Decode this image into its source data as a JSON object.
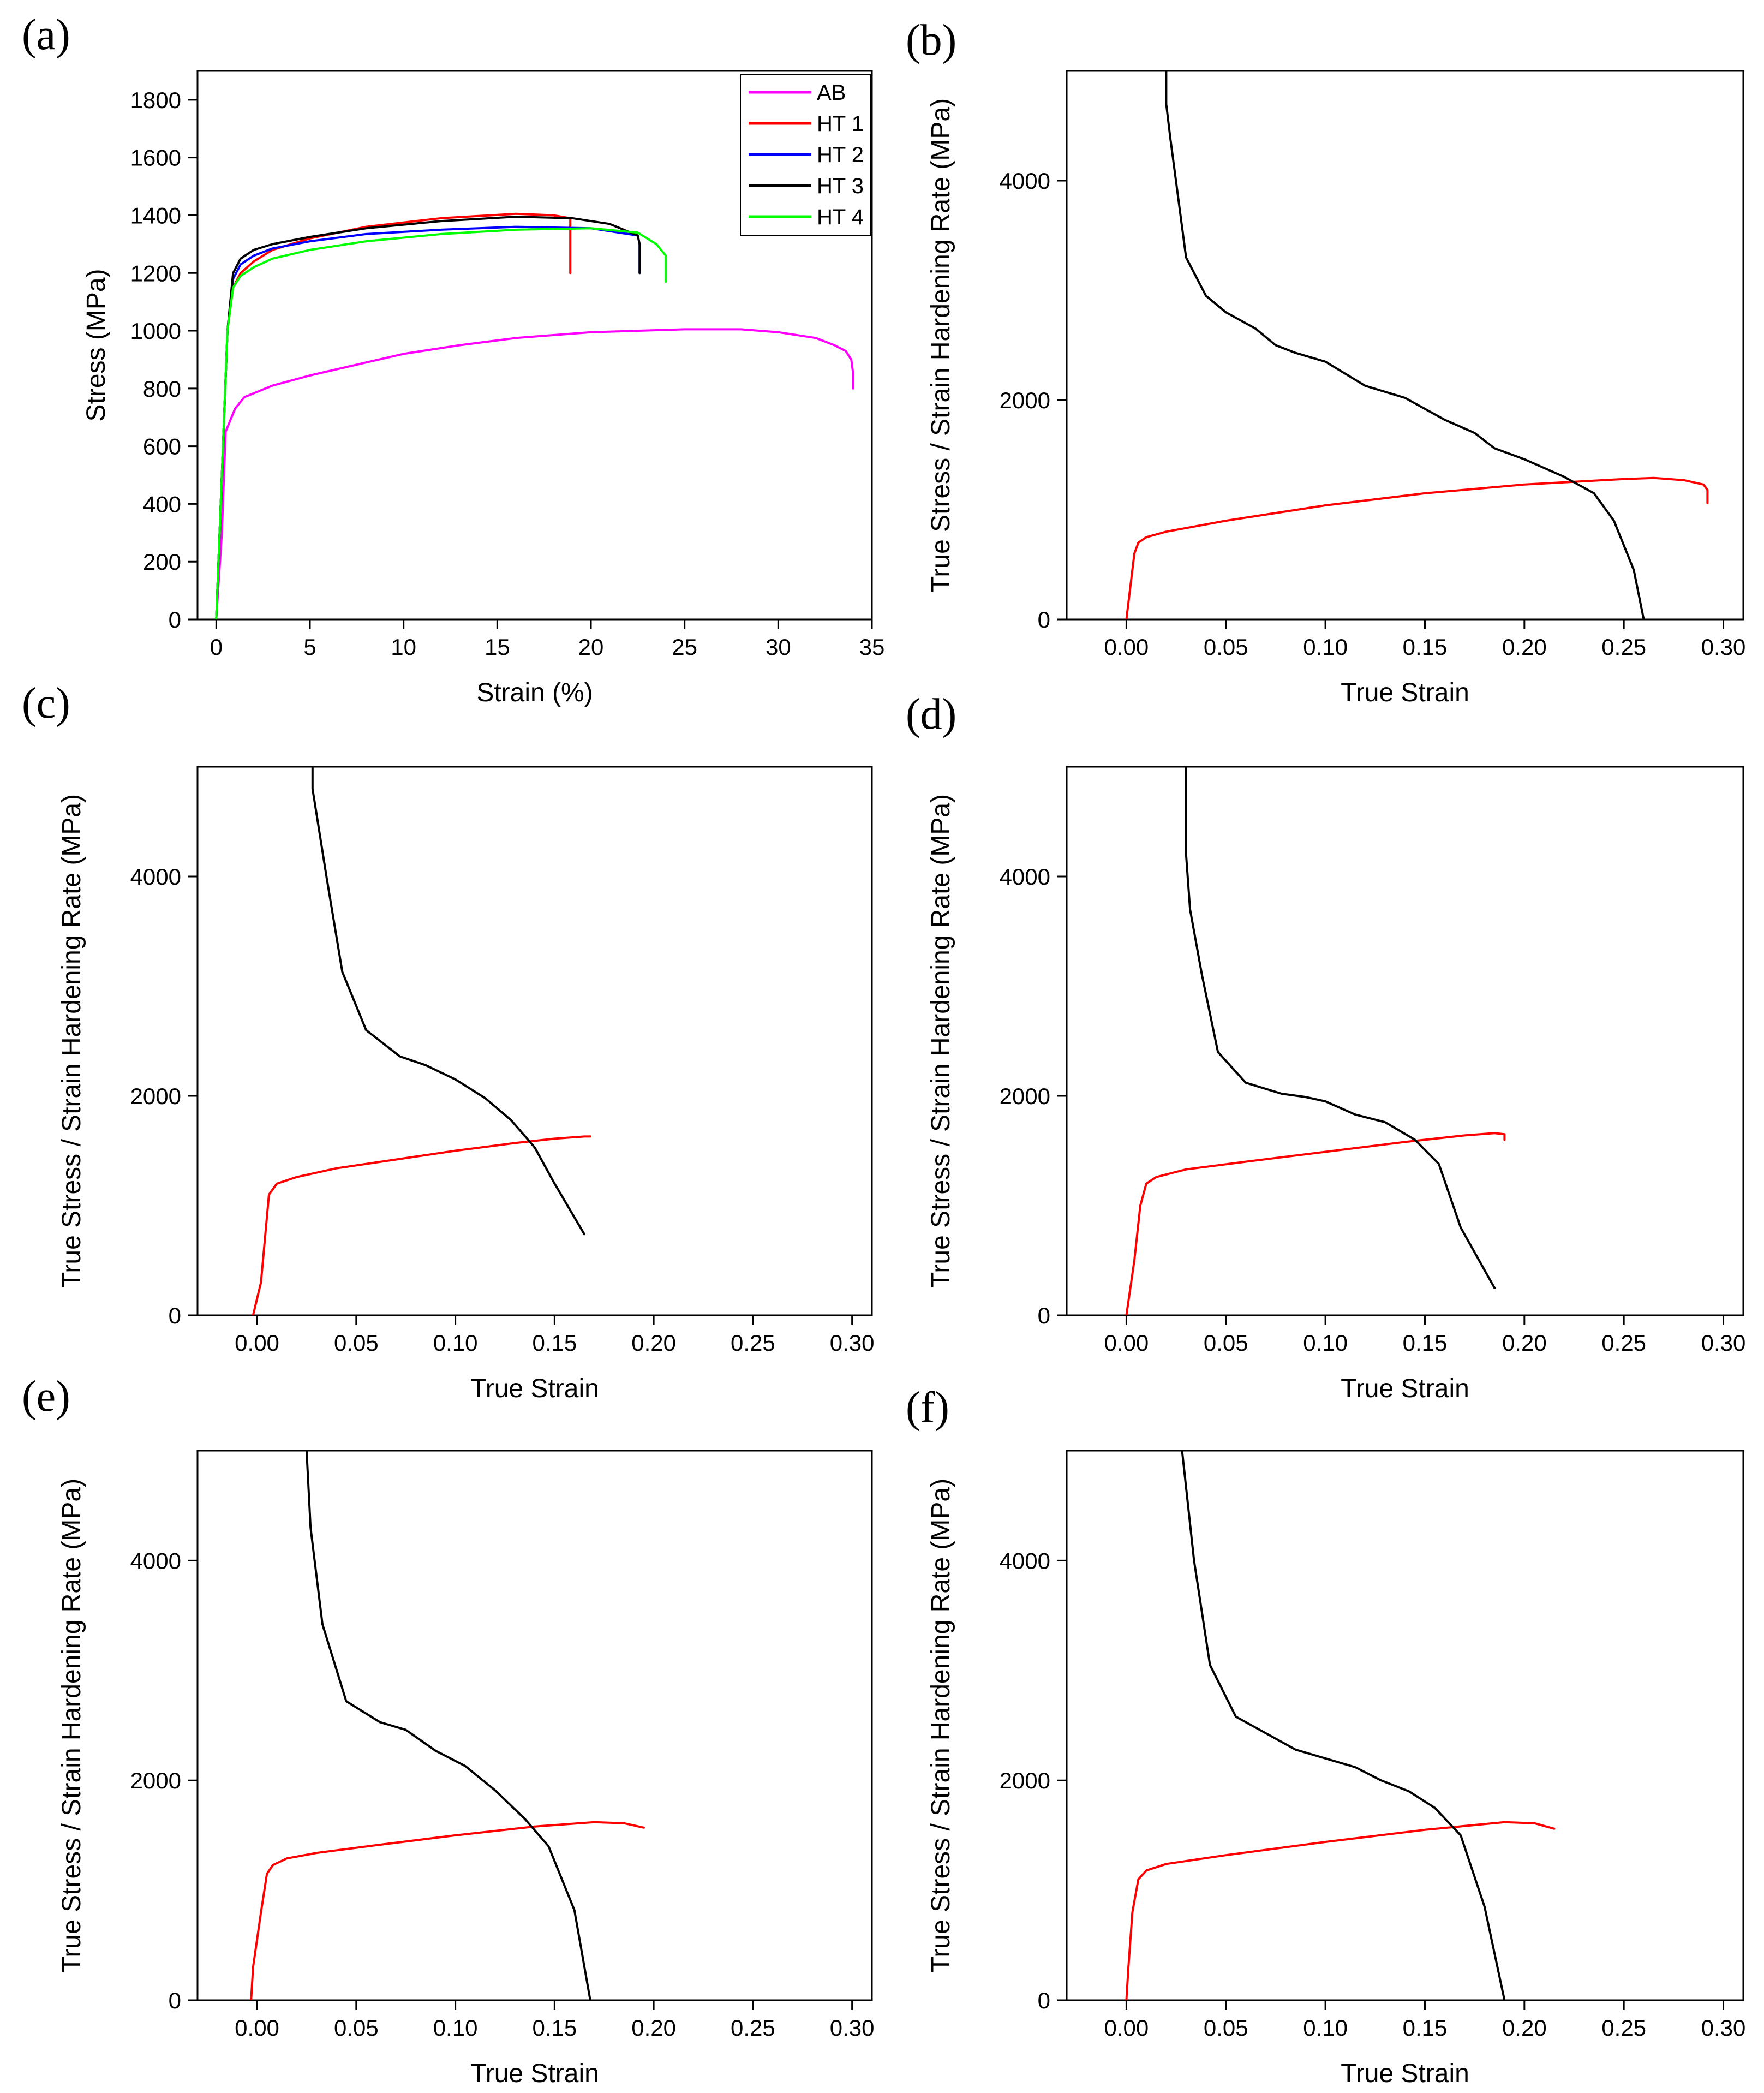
{
  "chart_data": [
    {
      "panel": "(a)",
      "type": "line",
      "xlabel": "Strain (%)",
      "ylabel": "Stress (MPa)",
      "xlim": [
        -1,
        35
      ],
      "ylim": [
        0,
        1900
      ],
      "xticks": [
        0,
        5,
        10,
        15,
        20,
        25,
        30,
        35
      ],
      "yticks": [
        0,
        200,
        400,
        600,
        800,
        1000,
        1200,
        1400,
        1600,
        1800
      ],
      "xtick_labels": [
        "0",
        "5",
        "10",
        "15",
        "20",
        "25",
        "30",
        "35"
      ],
      "ytick_labels": [
        "0",
        "200",
        "400",
        "600",
        "800",
        "1000",
        "1200",
        "1400",
        "1600",
        "1800"
      ],
      "legend_position": "top-right",
      "series": [
        {
          "name": "AB",
          "color": "#ff00ff",
          "x": [
            0,
            0.3,
            0.5,
            1,
            1.5,
            3,
            5,
            8,
            10,
            13,
            16,
            20,
            25,
            28,
            30,
            32,
            33,
            33.6,
            33.9,
            34,
            34
          ],
          "y": [
            0,
            300,
            650,
            730,
            770,
            810,
            845,
            890,
            920,
            950,
            975,
            995,
            1005,
            1005,
            995,
            975,
            950,
            930,
            900,
            850,
            800
          ]
        },
        {
          "name": "HT 1",
          "color": "#ff0000",
          "x": [
            0,
            0.3,
            0.6,
            0.9,
            1.3,
            2,
            3,
            5,
            8,
            12,
            16,
            18,
            18.9,
            18.9
          ],
          "y": [
            0,
            500,
            1000,
            1150,
            1200,
            1240,
            1280,
            1320,
            1360,
            1390,
            1405,
            1400,
            1390,
            1200
          ]
        },
        {
          "name": "HT 2",
          "color": "#0000ff",
          "x": [
            0,
            0.3,
            0.6,
            0.9,
            1.3,
            2,
            3,
            5,
            8,
            12,
            16,
            20,
            22.5,
            22.6,
            22.6
          ],
          "y": [
            0,
            500,
            1000,
            1180,
            1230,
            1260,
            1285,
            1310,
            1335,
            1350,
            1360,
            1355,
            1330,
            1300,
            1200
          ]
        },
        {
          "name": "HT 3",
          "color": "#000000",
          "x": [
            0,
            0.3,
            0.6,
            0.9,
            1.3,
            2,
            3,
            5,
            8,
            12,
            16,
            19,
            21,
            22.5,
            22.6,
            22.6
          ],
          "y": [
            0,
            500,
            1000,
            1200,
            1250,
            1280,
            1300,
            1325,
            1355,
            1380,
            1395,
            1390,
            1370,
            1330,
            1300,
            1200
          ]
        },
        {
          "name": "HT 4",
          "color": "#00ff00",
          "x": [
            0,
            0.3,
            0.6,
            0.9,
            1.3,
            2,
            3,
            5,
            8,
            12,
            16,
            20,
            22.5,
            23.5,
            24,
            24
          ],
          "y": [
            0,
            500,
            1000,
            1150,
            1190,
            1220,
            1250,
            1280,
            1310,
            1335,
            1350,
            1355,
            1340,
            1300,
            1260,
            1170
          ]
        }
      ]
    },
    {
      "panel": "(b)",
      "type": "line",
      "xlabel": "True Strain",
      "ylabel": "True Stress / Strain Hardening Rate (MPa)",
      "xlim": [
        -0.03,
        0.31
      ],
      "ylim": [
        0,
        5000
      ],
      "xticks": [
        0,
        0.05,
        0.1,
        0.15,
        0.2,
        0.25,
        0.3
      ],
      "yticks": [
        0,
        2000,
        4000
      ],
      "xtick_labels": [
        "0.00",
        "0.05",
        "0.10",
        "0.15",
        "0.20",
        "0.25",
        "0.30"
      ],
      "ytick_labels": [
        "0",
        "2000",
        "4000"
      ],
      "series": [
        {
          "name": "True Stress",
          "color": "#ff0000",
          "x": [
            0,
            0.002,
            0.004,
            0.006,
            0.01,
            0.02,
            0.05,
            0.1,
            0.15,
            0.2,
            0.25,
            0.265,
            0.28,
            0.29,
            0.292,
            0.292
          ],
          "y": [
            0,
            300,
            600,
            700,
            750,
            800,
            900,
            1040,
            1150,
            1230,
            1280,
            1290,
            1270,
            1230,
            1180,
            1060
          ]
        },
        {
          "name": "Strain Hardening Rate",
          "color": "#000000",
          "x": [
            0.02,
            0.02,
            0.022,
            0.03,
            0.04,
            0.05,
            0.065,
            0.075,
            0.085,
            0.1,
            0.12,
            0.14,
            0.16,
            0.175,
            0.185,
            0.2,
            0.22,
            0.235,
            0.245,
            0.255,
            0.26
          ],
          "y": [
            5000,
            4700,
            4400,
            3300,
            2950,
            2800,
            2650,
            2500,
            2430,
            2350,
            2130,
            2020,
            1820,
            1700,
            1560,
            1460,
            1300,
            1150,
            900,
            450,
            0
          ]
        }
      ]
    },
    {
      "panel": "(c)",
      "type": "line",
      "xlabel": "True Strain",
      "ylabel": "True Stress / Strain Hardening Rate (MPa)",
      "xlim": [
        -0.03,
        0.31
      ],
      "ylim": [
        0,
        5000
      ],
      "xticks": [
        0,
        0.05,
        0.1,
        0.15,
        0.2,
        0.25,
        0.3
      ],
      "yticks": [
        0,
        2000,
        4000
      ],
      "xtick_labels": [
        "0.00",
        "0.05",
        "0.10",
        "0.15",
        "0.20",
        "0.25",
        "0.30"
      ],
      "ytick_labels": [
        "0",
        "2000",
        "4000"
      ],
      "series": [
        {
          "name": "True Stress",
          "color": "#ff0000",
          "x": [
            -0.002,
            0.002,
            0.004,
            0.006,
            0.01,
            0.02,
            0.04,
            0.07,
            0.1,
            0.13,
            0.15,
            0.165,
            0.168
          ],
          "y": [
            0,
            300,
            700,
            1100,
            1200,
            1260,
            1340,
            1420,
            1500,
            1570,
            1610,
            1630,
            1630
          ]
        },
        {
          "name": "Strain Hardening Rate",
          "color": "#000000",
          "x": [
            0.028,
            0.028,
            0.035,
            0.043,
            0.055,
            0.072,
            0.085,
            0.1,
            0.115,
            0.128,
            0.14,
            0.15,
            0.165
          ],
          "y": [
            5000,
            4800,
            4000,
            3130,
            2600,
            2360,
            2280,
            2150,
            1980,
            1780,
            1530,
            1200,
            740
          ]
        }
      ]
    },
    {
      "panel": "(d)",
      "type": "line",
      "xlabel": "True Strain",
      "ylabel": "True Stress / Strain Hardening Rate (MPa)",
      "xlim": [
        -0.03,
        0.31
      ],
      "ylim": [
        0,
        5000
      ],
      "xticks": [
        0,
        0.05,
        0.1,
        0.15,
        0.2,
        0.25,
        0.3
      ],
      "yticks": [
        0,
        2000,
        4000
      ],
      "xtick_labels": [
        "0.00",
        "0.05",
        "0.10",
        "0.15",
        "0.20",
        "0.25",
        "0.30"
      ],
      "ytick_labels": [
        "0",
        "2000",
        "4000"
      ],
      "series": [
        {
          "name": "True Stress",
          "color": "#ff0000",
          "x": [
            0,
            0.004,
            0.007,
            0.01,
            0.015,
            0.03,
            0.06,
            0.1,
            0.14,
            0.17,
            0.185,
            0.19,
            0.19
          ],
          "y": [
            0,
            500,
            1000,
            1200,
            1260,
            1330,
            1400,
            1490,
            1580,
            1640,
            1660,
            1650,
            1600
          ]
        },
        {
          "name": "Strain Hardening Rate",
          "color": "#000000",
          "x": [
            0.03,
            0.03,
            0.032,
            0.038,
            0.046,
            0.06,
            0.078,
            0.09,
            0.1,
            0.115,
            0.13,
            0.145,
            0.157,
            0.168,
            0.185
          ],
          "y": [
            5000,
            4200,
            3700,
            3100,
            2400,
            2120,
            2020,
            1990,
            1950,
            1830,
            1760,
            1600,
            1380,
            800,
            250
          ]
        }
      ]
    },
    {
      "panel": "(e)",
      "type": "line",
      "xlabel": "True Strain",
      "ylabel": "True Stress / Strain Hardening Rate (MPa)",
      "xlim": [
        -0.03,
        0.31
      ],
      "ylim": [
        0,
        5000
      ],
      "xticks": [
        0,
        0.05,
        0.1,
        0.15,
        0.2,
        0.25,
        0.3
      ],
      "yticks": [
        0,
        2000,
        4000
      ],
      "xtick_labels": [
        "0.00",
        "0.05",
        "0.10",
        "0.15",
        "0.20",
        "0.25",
        "0.30"
      ],
      "ytick_labels": [
        "0",
        "2000",
        "4000"
      ],
      "series": [
        {
          "name": "True Stress",
          "color": "#ff0000",
          "x": [
            -0.003,
            -0.002,
            0.002,
            0.005,
            0.008,
            0.015,
            0.03,
            0.06,
            0.1,
            0.14,
            0.17,
            0.185,
            0.195
          ],
          "y": [
            0,
            300,
            800,
            1150,
            1230,
            1290,
            1340,
            1410,
            1500,
            1580,
            1620,
            1610,
            1570
          ]
        },
        {
          "name": "Strain Hardening Rate",
          "color": "#000000",
          "x": [
            0.025,
            0.027,
            0.033,
            0.045,
            0.062,
            0.075,
            0.09,
            0.105,
            0.12,
            0.135,
            0.147,
            0.16,
            0.168
          ],
          "y": [
            5000,
            4300,
            3420,
            2720,
            2530,
            2460,
            2270,
            2130,
            1910,
            1650,
            1400,
            820,
            0
          ]
        }
      ]
    },
    {
      "panel": "(f)",
      "type": "line",
      "xlabel": "True Strain",
      "ylabel": "True Stress / Strain Hardening Rate (MPa)",
      "xlim": [
        -0.03,
        0.31
      ],
      "ylim": [
        0,
        5000
      ],
      "xticks": [
        0,
        0.05,
        0.1,
        0.15,
        0.2,
        0.25,
        0.3
      ],
      "yticks": [
        0,
        2000,
        4000
      ],
      "xtick_labels": [
        "0.00",
        "0.05",
        "0.10",
        "0.15",
        "0.20",
        "0.25",
        "0.30"
      ],
      "ytick_labels": [
        "0",
        "2000",
        "4000"
      ],
      "series": [
        {
          "name": "True Stress",
          "color": "#ff0000",
          "x": [
            0,
            0.001,
            0.003,
            0.006,
            0.01,
            0.02,
            0.05,
            0.1,
            0.15,
            0.19,
            0.205,
            0.215
          ],
          "y": [
            0,
            300,
            800,
            1100,
            1180,
            1240,
            1320,
            1440,
            1550,
            1620,
            1610,
            1560
          ]
        },
        {
          "name": "Strain Hardening Rate",
          "color": "#000000",
          "x": [
            0.028,
            0.034,
            0.042,
            0.055,
            0.07,
            0.085,
            0.1,
            0.115,
            0.128,
            0.142,
            0.155,
            0.168,
            0.18,
            0.19
          ],
          "y": [
            5000,
            4000,
            3050,
            2580,
            2430,
            2280,
            2200,
            2120,
            2000,
            1900,
            1750,
            1500,
            850,
            0
          ]
        }
      ]
    }
  ]
}
